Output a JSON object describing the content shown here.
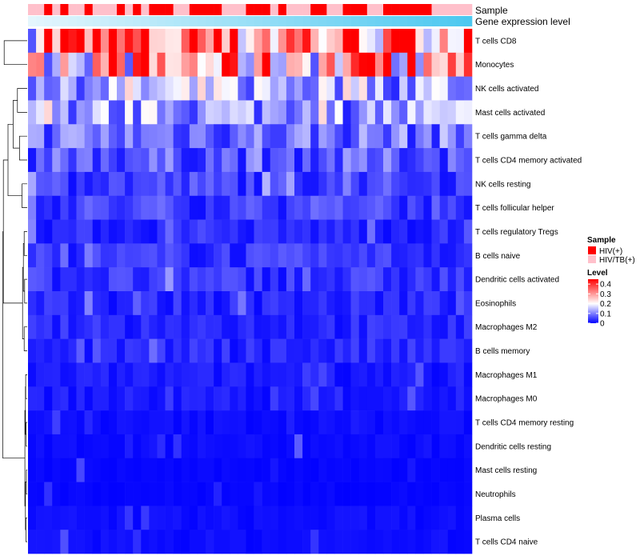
{
  "chart_data": {
    "type": "heatmap",
    "title": "",
    "annotations": {
      "sample_label": "Sample",
      "gene_expression_label": "Gene expression level",
      "sample_groups": [
        "HIV(+)",
        "HIV/TB(+)"
      ],
      "sample_colors": {
        "HIV(+)": "#ff0000",
        "HIV/TB(+)": "#ffc0cb"
      },
      "sample_sequence": [
        "HIV/TB(+)",
        "HIV/TB(+)",
        "HIV(+)",
        "HIV/TB(+)",
        "HIV(+)",
        "HIV/TB(+)",
        "HIV/TB(+)",
        "HIV(+)",
        "HIV/TB(+)",
        "HIV/TB(+)",
        "HIV/TB(+)",
        "HIV(+)",
        "HIV/TB(+)",
        "HIV(+)",
        "HIV/TB(+)",
        "HIV(+)",
        "HIV(+)",
        "HIV(+)",
        "HIV/TB(+)",
        "HIV/TB(+)",
        "HIV(+)",
        "HIV(+)",
        "HIV(+)",
        "HIV(+)",
        "HIV/TB(+)",
        "HIV/TB(+)",
        "HIV/TB(+)",
        "HIV(+)",
        "HIV(+)",
        "HIV(+)",
        "HIV/TB(+)",
        "HIV(+)",
        "HIV/TB(+)",
        "HIV/TB(+)",
        "HIV/TB(+)",
        "HIV(+)",
        "HIV(+)",
        "HIV/TB(+)",
        "HIV/TB(+)",
        "HIV(+)",
        "HIV(+)",
        "HIV(+)",
        "HIV/TB(+)",
        "HIV/TB(+)",
        "HIV(+)",
        "HIV(+)",
        "HIV(+)",
        "HIV(+)",
        "HIV(+)",
        "HIV(+)",
        "HIV/TB(+)",
        "HIV/TB(+)",
        "HIV/TB(+)",
        "HIV/TB(+)",
        "HIV/TB(+)"
      ],
      "gene_expression_gradient": [
        "#e4f6fd",
        "#4cc8f0"
      ]
    },
    "rows": [
      "T cells CD8",
      "Monocytes",
      "NK cells activated",
      "Mast cells activated",
      "T cells gamma delta",
      "T cells CD4 memory activated",
      "NK cells resting",
      "T cells follicular helper",
      "T cells regulatory  Tregs",
      "B cells naive",
      "Dendritic cells activated",
      "Eosinophils",
      "Macrophages M2",
      "B cells memory",
      "Macrophages M1",
      "Macrophages M0",
      "T cells CD4 memory resting",
      "Dendritic cells resting",
      "Mast cells resting",
      "Neutrophils",
      "Plasma cells",
      "T cells CD4 naive"
    ],
    "n_columns": 55,
    "row_mean_levels": [
      0.33,
      0.27,
      0.14,
      0.12,
      0.09,
      0.07,
      0.05,
      0.05,
      0.03,
      0.04,
      0.04,
      0.03,
      0.03,
      0.03,
      0.02,
      0.02,
      0.01,
      0.01,
      0.005,
      0.005,
      0.01,
      0.01
    ],
    "value_range": [
      0,
      0.45
    ],
    "color_scale": {
      "low": "#0000ff",
      "mid": "#ffffff",
      "high": "#ff0000",
      "mid_value": 0.2
    },
    "legend": {
      "sample_title": "Sample",
      "level_title": "Level",
      "level_ticks": [
        0.4,
        0.3,
        0.2,
        0.1,
        0
      ],
      "level_tick_labels": [
        "0.4",
        "0.3",
        "0.2",
        "0.1",
        "0"
      ],
      "placement": "right"
    },
    "dendrogram": {
      "side": "left",
      "merges": [
        [
          0,
          1,
          0.9
        ],
        [
          2,
          3,
          0.38
        ],
        [
          4,
          5,
          0.3
        ],
        [
          -2,
          -3,
          0.55
        ],
        [
          6,
          7,
          0.2
        ],
        [
          -4,
          -5,
          0.75
        ],
        [
          8,
          9,
          0.12
        ],
        [
          10,
          11,
          0.1
        ],
        [
          12,
          13,
          0.12
        ],
        [
          -7,
          -8,
          0.15
        ],
        [
          -9,
          -10,
          0.18
        ],
        [
          -6,
          -11,
          0.93
        ],
        [
          14,
          15,
          0.06
        ],
        [
          16,
          17,
          0.04
        ],
        [
          -13,
          -14,
          0.07
        ],
        [
          18,
          19,
          0.03
        ],
        [
          20,
          21,
          0.05
        ],
        [
          -16,
          -17,
          0.07
        ],
        [
          -15,
          -18,
          0.09
        ],
        [
          -12,
          -19,
          0.95
        ]
      ]
    }
  }
}
